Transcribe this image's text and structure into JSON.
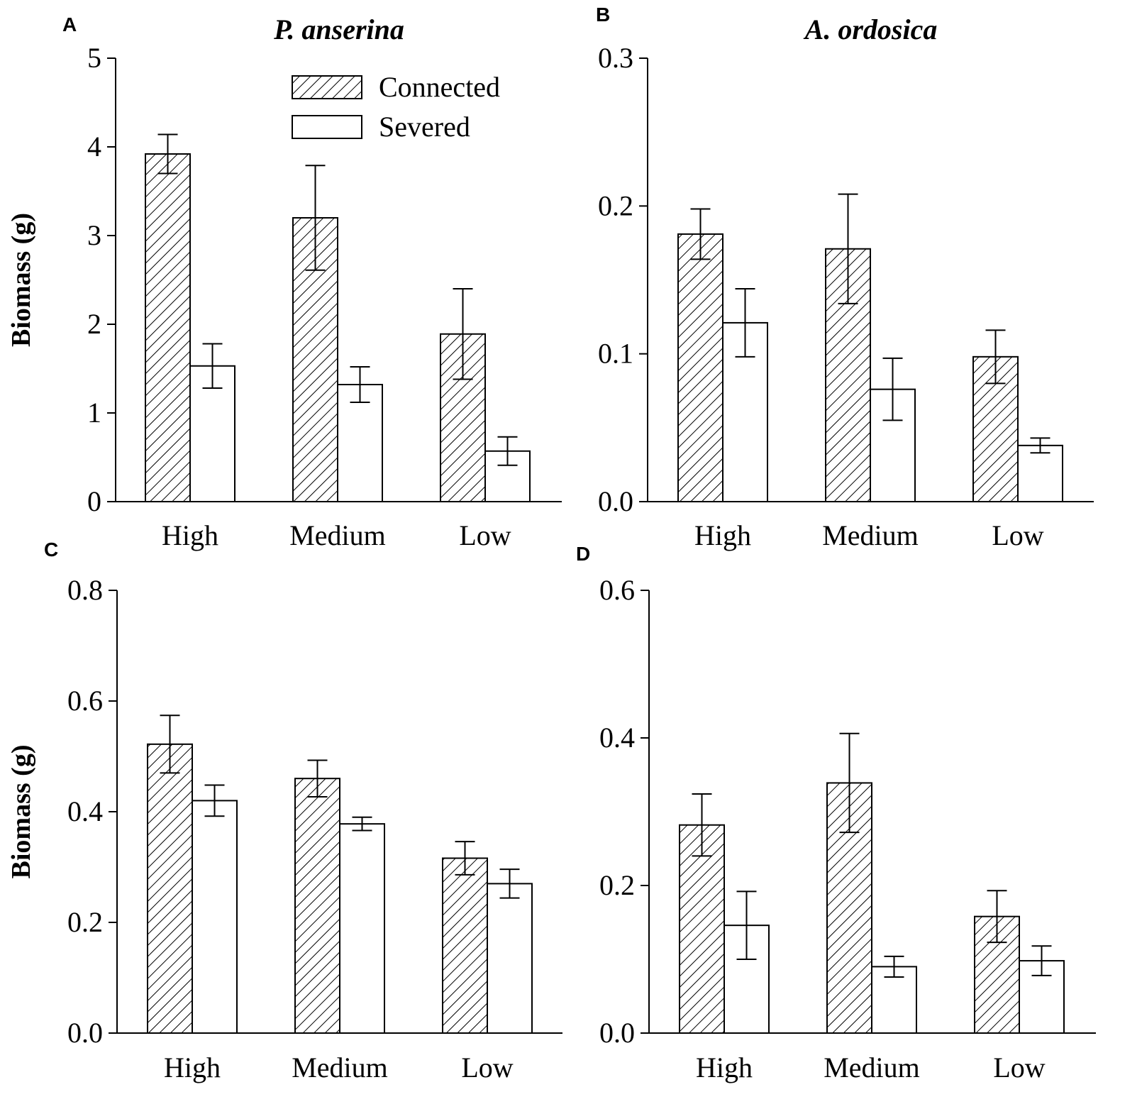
{
  "figure": {
    "panels": [
      {
        "letter": "A",
        "title": "P. anserina",
        "ylabel": "Biomass (g)"
      },
      {
        "letter": "B",
        "title": "A. ordosica",
        "ylabel": ""
      },
      {
        "letter": "C",
        "title": "",
        "ylabel": "Biomass (g)"
      },
      {
        "letter": "D",
        "title": "",
        "ylabel": ""
      }
    ],
    "legend": [
      {
        "name": "Connected",
        "pattern": "hatched"
      },
      {
        "name": "Severed",
        "pattern": "open"
      }
    ]
  },
  "chart_data": [
    {
      "type": "bar",
      "panel": "A",
      "title": "P. anserina",
      "ylabel": "Biomass (g)",
      "xlabel": "",
      "ylim": [
        0,
        5
      ],
      "yticks": [
        "0",
        "1",
        "2",
        "3",
        "4",
        "5"
      ],
      "categories": [
        "High",
        "Medium",
        "Low"
      ],
      "legend_location": "top-right",
      "series": [
        {
          "name": "Connected",
          "values": [
            3.92,
            3.2,
            1.89
          ],
          "errors": [
            0.22,
            0.59,
            0.51
          ]
        },
        {
          "name": "Severed",
          "values": [
            1.53,
            1.32,
            0.57
          ],
          "errors": [
            0.25,
            0.2,
            0.16
          ]
        }
      ]
    },
    {
      "type": "bar",
      "panel": "B",
      "title": "A. ordosica",
      "ylabel": "",
      "xlabel": "",
      "ylim": [
        0,
        0.3
      ],
      "yticks": [
        "0.0",
        "0.1",
        "0.2",
        "0.3"
      ],
      "categories": [
        "High",
        "Medium",
        "Low"
      ],
      "series": [
        {
          "name": "Connected",
          "values": [
            0.181,
            0.171,
            0.098
          ],
          "errors": [
            0.017,
            0.037,
            0.018
          ]
        },
        {
          "name": "Severed",
          "values": [
            0.121,
            0.076,
            0.038
          ],
          "errors": [
            0.023,
            0.021,
            0.005
          ]
        }
      ]
    },
    {
      "type": "bar",
      "panel": "C",
      "title": "",
      "ylabel": "Biomass (g)",
      "xlabel": "",
      "ylim": [
        0,
        0.8
      ],
      "yticks": [
        "0.0",
        "0.2",
        "0.4",
        "0.6",
        "0.8"
      ],
      "categories": [
        "High",
        "Medium",
        "Low"
      ],
      "series": [
        {
          "name": "Connected",
          "values": [
            0.522,
            0.46,
            0.316
          ],
          "errors": [
            0.052,
            0.033,
            0.03
          ]
        },
        {
          "name": "Severed",
          "values": [
            0.42,
            0.378,
            0.27
          ],
          "errors": [
            0.028,
            0.012,
            0.026
          ]
        }
      ]
    },
    {
      "type": "bar",
      "panel": "D",
      "title": "",
      "ylabel": "",
      "xlabel": "",
      "ylim": [
        0,
        0.6
      ],
      "yticks": [
        "0.0",
        "0.2",
        "0.4",
        "0.6"
      ],
      "categories": [
        "High",
        "Medium",
        "Low"
      ],
      "series": [
        {
          "name": "Connected",
          "values": [
            0.282,
            0.339,
            0.158
          ],
          "errors": [
            0.042,
            0.067,
            0.035
          ]
        },
        {
          "name": "Severed",
          "values": [
            0.146,
            0.09,
            0.098
          ],
          "errors": [
            0.046,
            0.014,
            0.02
          ]
        }
      ]
    }
  ]
}
